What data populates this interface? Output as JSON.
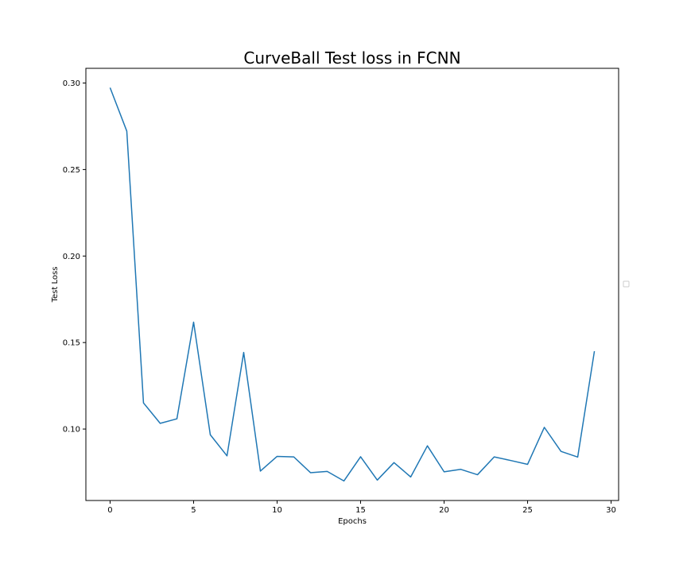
{
  "chart_data": {
    "type": "line",
    "title": "CurveBall Test loss in FCNN",
    "xlabel": "Epochs",
    "ylabel": "Test Loss",
    "xlim": [
      -1.45,
      30.45
    ],
    "ylim": [
      0.0587,
      0.3085
    ],
    "xticks": [
      0,
      5,
      10,
      15,
      20,
      25,
      30
    ],
    "yticks": [
      0.1,
      0.15,
      0.2,
      0.25,
      0.3
    ],
    "xtick_labels": [
      "0",
      "5",
      "10",
      "15",
      "20",
      "25",
      "30"
    ],
    "ytick_labels": [
      "0.10",
      "0.15",
      "0.20",
      "0.25",
      "0.30"
    ],
    "grid": false,
    "legend": "center-right (empty)",
    "series": [
      {
        "color": "#1f77b4",
        "x": [
          0,
          1,
          2,
          3,
          4,
          5,
          6,
          7,
          8,
          9,
          10,
          11,
          12,
          13,
          14,
          15,
          16,
          17,
          18,
          19,
          20,
          21,
          22,
          23,
          24,
          25,
          26,
          27,
          28,
          29
        ],
        "values": [
          0.2973,
          0.2722,
          0.1151,
          0.1033,
          0.1059,
          0.1618,
          0.0967,
          0.0845,
          0.1443,
          0.0757,
          0.0842,
          0.0839,
          0.0748,
          0.0755,
          0.07,
          0.084,
          0.0705,
          0.0806,
          0.0723,
          0.0903,
          0.0753,
          0.0767,
          0.0736,
          0.0839,
          0.0818,
          0.0796,
          0.101,
          0.0871,
          0.0838,
          0.145
        ]
      }
    ]
  }
}
